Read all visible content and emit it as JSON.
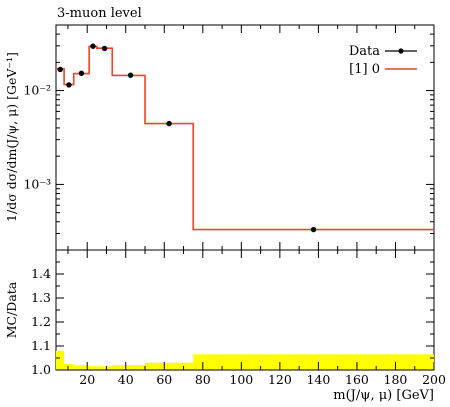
{
  "chart_data": [
    {
      "type": "line",
      "title": "3-muon level",
      "xlabel": "m(J/ψ, μ) [GeV]",
      "ylabel": "1/dσ dσ/dm(J/ψ, μ) [GeV⁻¹]",
      "yscale": "log",
      "xlim": [
        3.8,
        200
      ],
      "ylim": [
        0.0002,
        0.05
      ],
      "legend": "top-right",
      "ytick_labels": [
        "10⁻²",
        "10⁻³"
      ],
      "series": [
        {
          "name": "Data",
          "color": "#000000",
          "points": [
            {
              "x": 6,
              "y": 0.0168
            },
            {
              "x": 10.5,
              "y": 0.0115
            },
            {
              "x": 17,
              "y": 0.0153
            },
            {
              "x": 23,
              "y": 0.0297
            },
            {
              "x": 29,
              "y": 0.0281
            },
            {
              "x": 42.5,
              "y": 0.0146
            },
            {
              "x": 62.5,
              "y": 0.00445
            },
            {
              "x": 137.5,
              "y": 0.00033
            }
          ]
        },
        {
          "name": "[1] 0",
          "color": "#e8472a",
          "step_edges": [
            3.8,
            8,
            13,
            21,
            25,
            33,
            50,
            75,
            200
          ],
          "step_values": [
            0.017,
            0.0116,
            0.0152,
            0.0296,
            0.0283,
            0.0145,
            0.00445,
            0.00033
          ]
        }
      ]
    },
    {
      "type": "area",
      "ylabel": "MC/Data",
      "xlabel": "m(J/ψ, μ) [GeV]",
      "xlim": [
        3.8,
        200
      ],
      "ylim": [
        1.0,
        1.5
      ],
      "x_tick_labels": [
        "20",
        "40",
        "60",
        "80",
        "100",
        "120",
        "140",
        "160",
        "180",
        "200"
      ],
      "y_tick_labels": [
        "1.0",
        "1.1",
        "1.2",
        "1.3",
        "1.4"
      ],
      "band_color": "#ffff00",
      "band_edges": [
        3.8,
        8,
        13,
        21,
        25,
        33,
        50,
        75,
        200
      ],
      "band_upper": [
        1.08,
        1.025,
        1.02,
        1.015,
        1.015,
        1.02,
        1.03,
        1.065
      ],
      "ratio_line": 1.0
    }
  ]
}
